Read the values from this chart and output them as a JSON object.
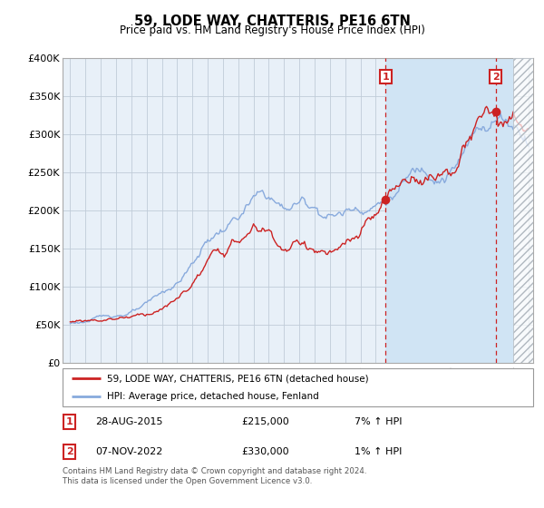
{
  "title": "59, LODE WAY, CHATTERIS, PE16 6TN",
  "subtitle": "Price paid vs. HM Land Registry's House Price Index (HPI)",
  "ylabel_ticks": [
    "£0",
    "£50K",
    "£100K",
    "£150K",
    "£200K",
    "£250K",
    "£300K",
    "£350K",
    "£400K"
  ],
  "ylim": [
    0,
    400000
  ],
  "xlim_start": 1994.5,
  "xlim_end": 2025.3,
  "hatch_start": 2024.0,
  "sale1_date": 2015.65,
  "sale1_price": 215000,
  "sale2_date": 2022.85,
  "sale2_price": 330000,
  "shade_start": 2015.65,
  "legend_line1": "59, LODE WAY, CHATTERIS, PE16 6TN (detached house)",
  "legend_line2": "HPI: Average price, detached house, Fenland",
  "table_row1": [
    "1",
    "28-AUG-2015",
    "£215,000",
    "7% ↑ HPI"
  ],
  "table_row2": [
    "2",
    "07-NOV-2022",
    "£330,000",
    "1% ↑ HPI"
  ],
  "footnote": "Contains HM Land Registry data © Crown copyright and database right 2024.\nThis data is licensed under the Open Government Licence v3.0.",
  "hpi_color": "#88aadd",
  "price_color": "#cc2222",
  "bg_plot": "#e8f0f8",
  "bg_shade": "#d0e4f4",
  "grid_color": "#c0ccd8",
  "annotation_color": "#cc2222",
  "hatch_color": "#b0b8c0"
}
